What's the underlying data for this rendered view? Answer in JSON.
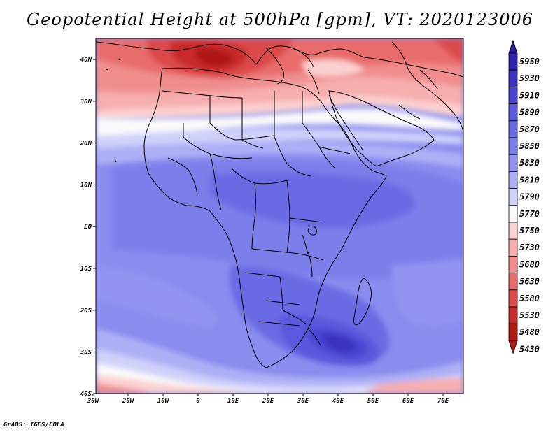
{
  "title": "Geopotential Height at 500hPa [gpm], VT: 2020123006",
  "footer": "GrADS: IGES/COLA",
  "map": {
    "x_ticks": [
      "30W",
      "20W",
      "10W",
      "0",
      "10E",
      "20E",
      "30E",
      "40E",
      "50E",
      "60E",
      "70E"
    ],
    "y_ticks": [
      "40N",
      "30N",
      "20N",
      "10N",
      "EQ",
      "10S",
      "20S",
      "30S",
      "40S"
    ],
    "lon_range": [
      -30,
      75
    ],
    "lat_range": [
      -40,
      45
    ]
  },
  "colorbar": {
    "levels": [
      "5950",
      "5930",
      "5910",
      "5890",
      "5870",
      "5850",
      "5830",
      "5810",
      "5790",
      "5770",
      "5750",
      "5730",
      "5680",
      "5630",
      "5580",
      "5530",
      "5480",
      "5430"
    ],
    "colors": [
      "#2a1a9a",
      "#3022b0",
      "#3a32c0",
      "#4a44d0",
      "#5a58dc",
      "#6a6ae4",
      "#7c7eea",
      "#9294f0",
      "#aeb0f6",
      "#d0d2fa",
      "#fafafa",
      "#fbd0d0",
      "#f6aeae",
      "#f08e8e",
      "#e86c6c",
      "#dc4a4a",
      "#c82a2a",
      "#b01818"
    ]
  }
}
